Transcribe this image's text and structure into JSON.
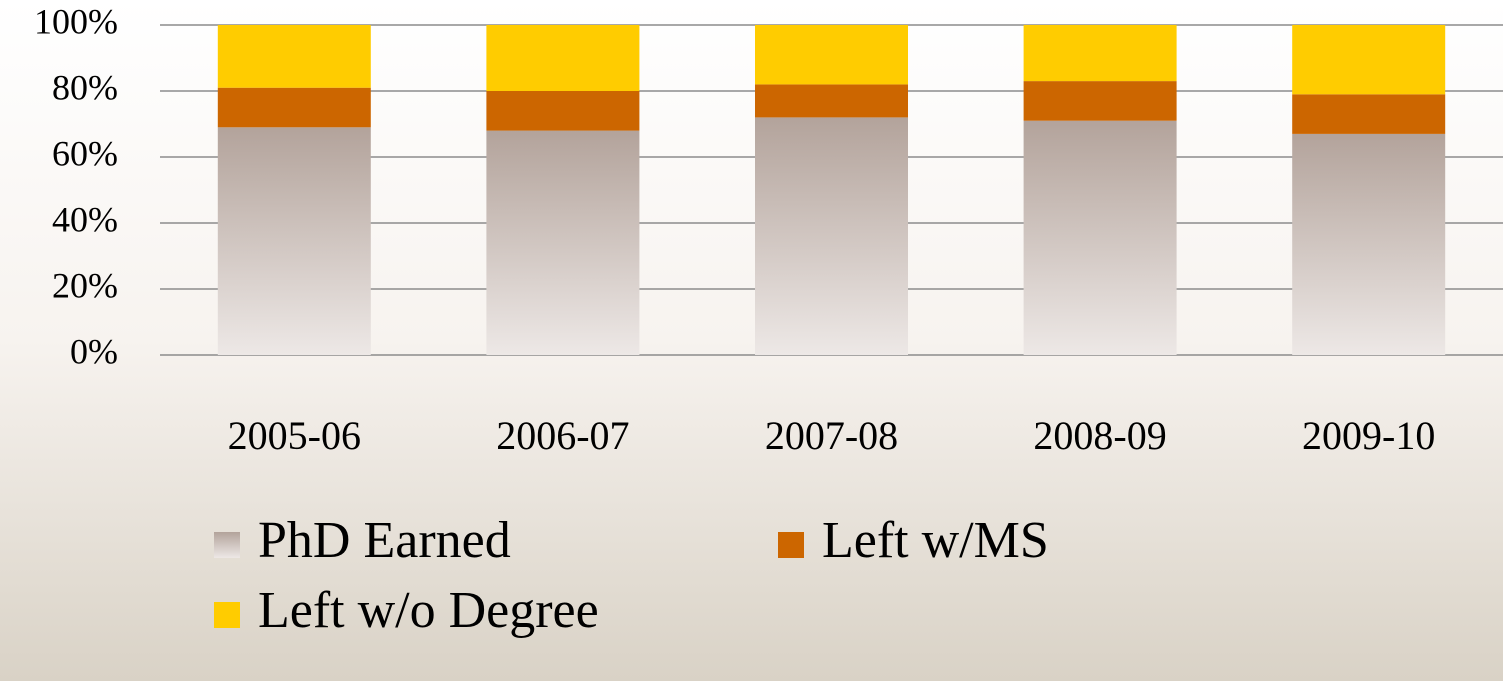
{
  "chart_data": {
    "type": "stacked_bar",
    "categories": [
      "2005-06",
      "2006-07",
      "2007-08",
      "2008-09",
      "2009-10"
    ],
    "series": [
      {
        "name": "PhD Earned",
        "color": "#b3a39b",
        "values": [
          69,
          68,
          72,
          71,
          67
        ]
      },
      {
        "name": "Left w/MS",
        "color": "#cc6600",
        "values": [
          12,
          12,
          10,
          12,
          12
        ]
      },
      {
        "name": "Left w/o Degree",
        "color": "#ffcc00",
        "values": [
          19,
          20,
          18,
          17,
          21
        ]
      }
    ],
    "ylim": [
      0,
      100
    ],
    "yticks": [
      {
        "value": 0,
        "label": "0%"
      },
      {
        "value": 20,
        "label": "20%"
      },
      {
        "value": 40,
        "label": "40%"
      },
      {
        "value": 60,
        "label": "60%"
      },
      {
        "value": 80,
        "label": "80%"
      },
      {
        "value": 100,
        "label": "100%"
      }
    ],
    "grid": true
  }
}
